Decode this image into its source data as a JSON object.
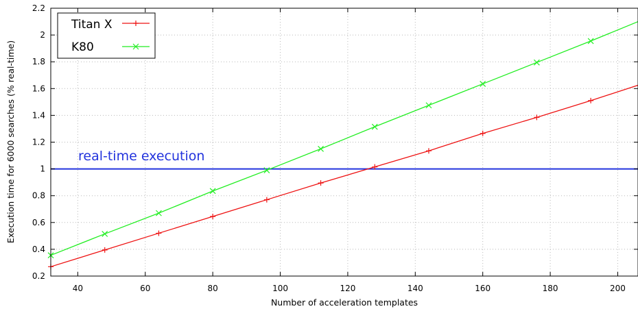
{
  "chart_data": {
    "type": "line",
    "title": "",
    "xlabel": "Number of acceleration templates",
    "ylabel": "Execution time for 6000 searches (% real-time)",
    "xlim": [
      32,
      206
    ],
    "ylim": [
      0.2,
      2.2
    ],
    "x_ticks": [
      40,
      60,
      80,
      100,
      120,
      140,
      160,
      180,
      200
    ],
    "y_ticks": [
      "0.2",
      "0.4",
      "0.6",
      "0.8",
      "1",
      "1.2",
      "1.4",
      "1.6",
      "1.8",
      "2",
      "2.2"
    ],
    "grid": true,
    "legend_position": "top-left",
    "series": [
      {
        "name": "Titan X",
        "color": "#ee1111",
        "marker": "plus",
        "x": [
          32,
          48,
          64,
          80,
          96,
          112,
          128,
          144,
          160,
          176,
          192
        ],
        "y": [
          0.27,
          0.395,
          0.52,
          0.645,
          0.77,
          0.895,
          1.015,
          1.135,
          1.265,
          1.385,
          1.51
        ],
        "line_to": [
          206,
          1.625
        ]
      },
      {
        "name": "K80",
        "color": "#22ee22",
        "marker": "x",
        "x": [
          32,
          48,
          64,
          80,
          96,
          112,
          128,
          144,
          160,
          176,
          192
        ],
        "y": [
          0.355,
          0.515,
          0.67,
          0.835,
          0.99,
          1.15,
          1.315,
          1.475,
          1.635,
          1.795,
          1.955
        ],
        "line_to": [
          206,
          2.1
        ]
      }
    ],
    "reference_line": {
      "y": 1.0,
      "color": "#2233dd",
      "label": "real-time execution"
    }
  }
}
